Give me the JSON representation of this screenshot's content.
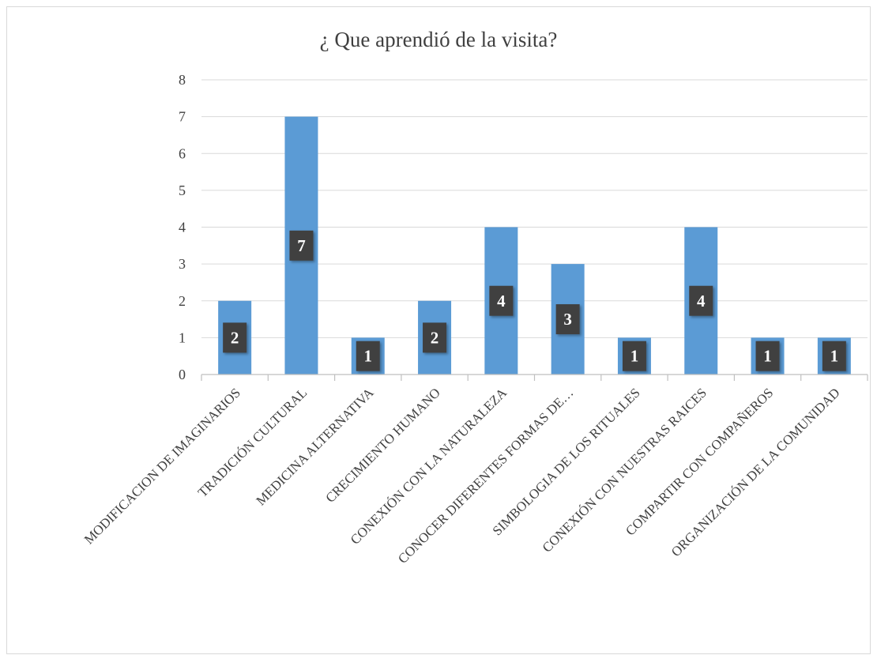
{
  "chart_data": {
    "type": "bar",
    "title": "¿ Que aprendió de la visita?",
    "xlabel": "",
    "ylabel": "",
    "categories": [
      "MODIFICACION DE IMAGINARIOS",
      "TRADICIÓN CULTURAL",
      "MEDICINA ALTERNATIVA",
      "CRECIMIENTO HUMANO",
      "CONEXIÓN CON LA NATURALEZA",
      "CONOCER DIFERENTES FORMAS DE…",
      "SIMBOLOGIA DE LOS RITUALES",
      "CONEXIÓN CON NUESTRAS RAICES",
      "COMPARTIR CON COMPAÑEROS",
      "ORGANIZACIÓN DE LA COMUNIDAD"
    ],
    "values": [
      2,
      7,
      1,
      2,
      4,
      3,
      1,
      4,
      1,
      1
    ],
    "ylim": [
      0,
      8
    ],
    "yticks": [
      0,
      1,
      2,
      3,
      4,
      5,
      6,
      7,
      8
    ],
    "grid": true,
    "legend": "none",
    "data_labels": true,
    "colors": {
      "bar": "#5b9bd5",
      "label_box": "#404040",
      "gridline": "#d9d9d9",
      "axis": "#bfbfbf",
      "text": "#404040"
    }
  }
}
